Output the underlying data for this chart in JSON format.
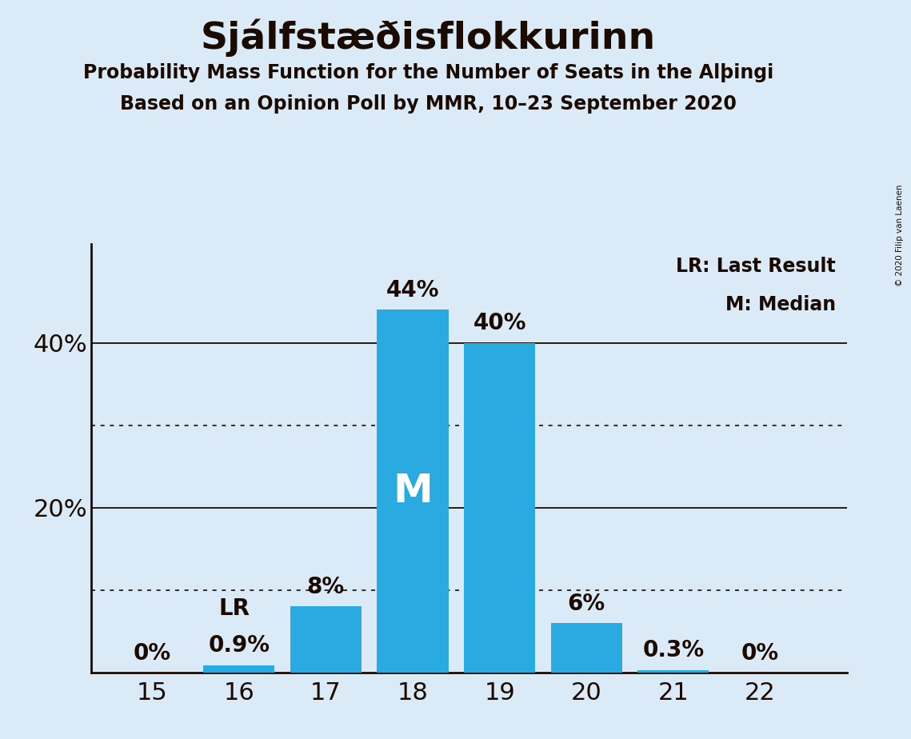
{
  "title": "Sjálfstæðisflokkurinn",
  "subtitle1": "Probability Mass Function for the Number of Seats in the Alþingi",
  "subtitle2": "Based on an Opinion Poll by MMR, 10–23 September 2020",
  "copyright": "© 2020 Filip van Laenen",
  "seats": [
    15,
    16,
    17,
    18,
    19,
    20,
    21,
    22
  ],
  "probabilities": [
    0.0,
    0.9,
    8.0,
    44.0,
    40.0,
    6.0,
    0.3,
    0.0
  ],
  "bar_color": "#29ABE2",
  "bg_color": "#daeaf6",
  "text_color": "#1a0a00",
  "median_seat": 18,
  "lr_seat": 16,
  "yticks": [
    20,
    40
  ],
  "dotted_lines": [
    10,
    30
  ],
  "solid_lines": [
    20,
    40
  ],
  "legend_lr": "LR: Last Result",
  "legend_m": "M: Median",
  "bar_labels": [
    "0%",
    "0.9%",
    "8%",
    "44%",
    "40%",
    "6%",
    "0.3%",
    "0%"
  ],
  "ylim_max": 52,
  "bar_width": 0.82
}
